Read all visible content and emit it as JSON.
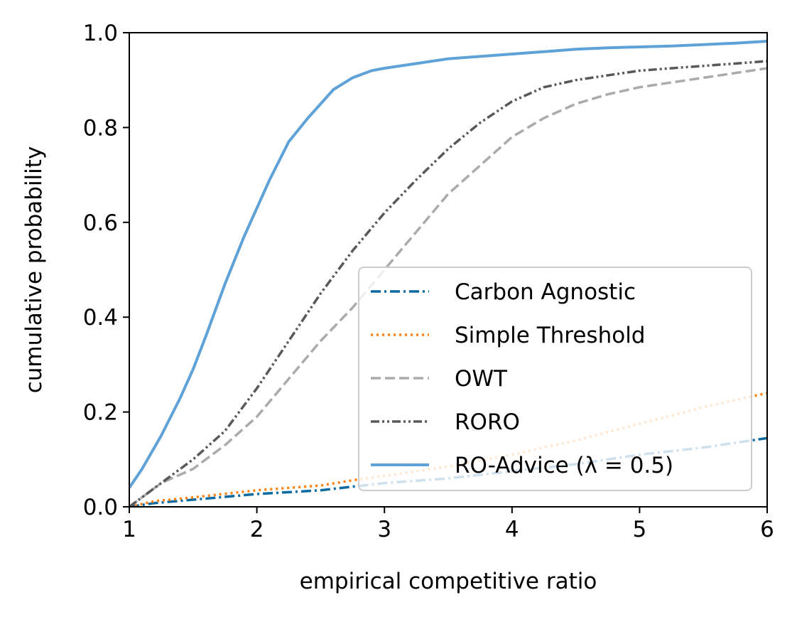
{
  "chart_data": {
    "type": "line",
    "xlabel": "empirical competitive ratio",
    "ylabel": "cumulative probability",
    "xlim": [
      1,
      6
    ],
    "ylim": [
      0,
      1
    ],
    "xticks": [
      1,
      2,
      3,
      4,
      5,
      6
    ],
    "xtick_labels": [
      "1",
      "2",
      "3",
      "4",
      "5",
      "6"
    ],
    "yticks": [
      0,
      0.2,
      0.4,
      0.6,
      0.8,
      1.0
    ],
    "ytick_labels": [
      "0.0",
      "0.2",
      "0.4",
      "0.6",
      "0.8",
      "1.0"
    ],
    "grid": false,
    "legend_position": "bottom-right",
    "series": [
      {
        "name": "Carbon Agnostic",
        "color": "#0a6aa1",
        "style": "dashdot",
        "x": [
          1.0,
          1.2,
          1.5,
          2.0,
          2.5,
          3.0,
          3.5,
          4.0,
          4.5,
          5.0,
          5.5,
          6.0
        ],
        "y": [
          0.0,
          0.008,
          0.015,
          0.027,
          0.035,
          0.05,
          0.06,
          0.075,
          0.09,
          0.11,
          0.125,
          0.145
        ]
      },
      {
        "name": "Simple Threshold",
        "color": "#ff800e",
        "style": "dotted",
        "x": [
          1.0,
          1.2,
          1.5,
          2.0,
          2.5,
          2.8,
          3.0,
          3.5,
          4.0,
          4.5,
          5.0,
          5.5,
          6.0
        ],
        "y": [
          0.0,
          0.012,
          0.02,
          0.035,
          0.045,
          0.058,
          0.065,
          0.085,
          0.11,
          0.14,
          0.175,
          0.21,
          0.24
        ]
      },
      {
        "name": "OWT",
        "color": "#ababab",
        "style": "dashed",
        "x": [
          1.0,
          1.25,
          1.5,
          1.75,
          2.0,
          2.25,
          2.5,
          2.75,
          3.0,
          3.25,
          3.5,
          3.75,
          4.0,
          4.25,
          4.5,
          4.75,
          5.0,
          5.25,
          5.5,
          5.75,
          6.0
        ],
        "y": [
          0.0,
          0.05,
          0.08,
          0.13,
          0.19,
          0.27,
          0.35,
          0.42,
          0.5,
          0.58,
          0.66,
          0.72,
          0.78,
          0.82,
          0.85,
          0.87,
          0.885,
          0.895,
          0.905,
          0.915,
          0.925
        ]
      },
      {
        "name": "RORO",
        "color": "#595959",
        "style": "dashdotdot",
        "x": [
          1.0,
          1.25,
          1.5,
          1.75,
          2.0,
          2.25,
          2.5,
          2.75,
          3.0,
          3.25,
          3.5,
          3.75,
          4.0,
          4.25,
          4.5,
          4.75,
          5.0,
          5.25,
          5.5,
          5.75,
          6.0
        ],
        "y": [
          0.0,
          0.05,
          0.1,
          0.16,
          0.25,
          0.35,
          0.45,
          0.54,
          0.62,
          0.69,
          0.755,
          0.81,
          0.855,
          0.885,
          0.9,
          0.91,
          0.92,
          0.925,
          0.93,
          0.935,
          0.94
        ]
      },
      {
        "name": "RO-Advice (λ = 0.5)",
        "color": "#5fa2d8",
        "style": "solid",
        "x": [
          1.0,
          1.1,
          1.25,
          1.4,
          1.5,
          1.6,
          1.75,
          1.9,
          2.0,
          2.1,
          2.25,
          2.4,
          2.5,
          2.6,
          2.75,
          2.9,
          3.0,
          3.25,
          3.5,
          3.75,
          4.0,
          4.25,
          4.5,
          4.75,
          5.0,
          5.25,
          5.5,
          5.75,
          6.0
        ],
        "y": [
          0.04,
          0.08,
          0.15,
          0.23,
          0.29,
          0.36,
          0.47,
          0.57,
          0.63,
          0.69,
          0.77,
          0.82,
          0.85,
          0.88,
          0.905,
          0.92,
          0.925,
          0.935,
          0.945,
          0.95,
          0.955,
          0.96,
          0.965,
          0.968,
          0.97,
          0.972,
          0.975,
          0.978,
          0.982
        ]
      }
    ]
  }
}
